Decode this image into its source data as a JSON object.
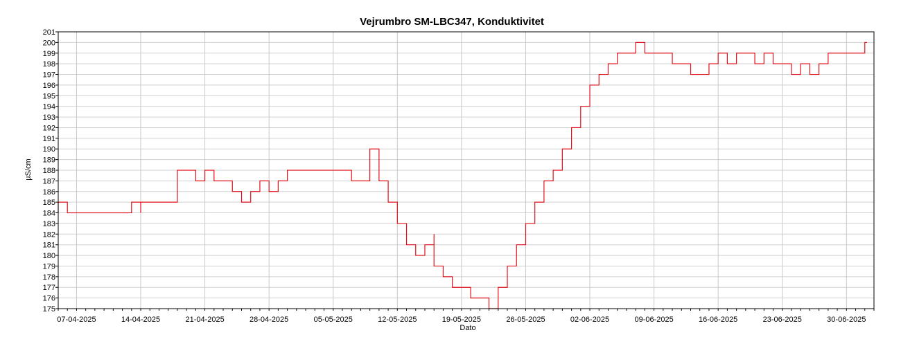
{
  "chart_data": {
    "type": "line",
    "title": "Vejrumbro SM-LBC347, Konduktivitet",
    "xlabel": "Dato",
    "ylabel": "µS/cm",
    "ylim": [
      175,
      201
    ],
    "xlim": [
      "2025-04-05",
      "2025-07-03"
    ],
    "yticks": [
      175,
      176,
      177,
      178,
      179,
      180,
      181,
      182,
      183,
      184,
      185,
      186,
      187,
      188,
      189,
      190,
      191,
      192,
      193,
      194,
      195,
      196,
      197,
      198,
      199,
      200,
      201
    ],
    "xticks": [
      {
        "date": "2025-04-07",
        "label": "07-04-2025"
      },
      {
        "date": "2025-04-14",
        "label": "14-04-2025"
      },
      {
        "date": "2025-04-21",
        "label": "21-04-2025"
      },
      {
        "date": "2025-04-28",
        "label": "28-04-2025"
      },
      {
        "date": "2025-05-05",
        "label": "05-05-2025"
      },
      {
        "date": "2025-05-12",
        "label": "12-05-2025"
      },
      {
        "date": "2025-05-19",
        "label": "19-05-2025"
      },
      {
        "date": "2025-05-26",
        "label": "26-05-2025"
      },
      {
        "date": "2025-06-02",
        "label": "02-06-2025"
      },
      {
        "date": "2025-06-09",
        "label": "09-06-2025"
      },
      {
        "date": "2025-06-16",
        "label": "16-06-2025"
      },
      {
        "date": "2025-06-23",
        "label": "23-06-2025"
      },
      {
        "date": "2025-06-30",
        "label": "30-06-2025"
      }
    ],
    "grid": true,
    "legend": "none",
    "series": [
      {
        "color": "#e0101a",
        "x": [
          "2025-04-05",
          "2025-04-05",
          "2025-04-06",
          "2025-04-07",
          "2025-04-10",
          "2025-04-12",
          "2025-04-13",
          "2025-04-13",
          "2025-04-14",
          "2025-04-14",
          "2025-04-15",
          "2025-04-17",
          "2025-04-18",
          "2025-04-19",
          "2025-04-20",
          "2025-04-21",
          "2025-04-22",
          "2025-04-23",
          "2025-04-24",
          "2025-04-25",
          "2025-04-26",
          "2025-04-27",
          "2025-04-28",
          "2025-04-29",
          "2025-04-30",
          "2025-05-01",
          "2025-05-02",
          "2025-05-03",
          "2025-05-04",
          "2025-05-05",
          "2025-05-06",
          "2025-05-07",
          "2025-05-08",
          "2025-05-09",
          "2025-05-10",
          "2025-05-11",
          "2025-05-12",
          "2025-05-13",
          "2025-05-14",
          "2025-05-15",
          "2025-05-16",
          "2025-05-16",
          "2025-05-17",
          "2025-05-18",
          "2025-05-19",
          "2025-05-20",
          "2025-05-21",
          "2025-05-22",
          "2025-05-23",
          "2025-05-24",
          "2025-05-25",
          "2025-05-26",
          "2025-05-27",
          "2025-05-28",
          "2025-05-29",
          "2025-05-30",
          "2025-05-31",
          "2025-06-01",
          "2025-06-02",
          "2025-06-03",
          "2025-06-04",
          "2025-06-05",
          "2025-06-06",
          "2025-06-07",
          "2025-06-08",
          "2025-06-09",
          "2025-06-10",
          "2025-06-11",
          "2025-06-12",
          "2025-06-13",
          "2025-06-14",
          "2025-06-15",
          "2025-06-16",
          "2025-06-17",
          "2025-06-18",
          "2025-06-19",
          "2025-06-20",
          "2025-06-21",
          "2025-06-22",
          "2025-06-23",
          "2025-06-24",
          "2025-06-25",
          "2025-06-26",
          "2025-06-27",
          "2025-06-28",
          "2025-06-29",
          "2025-06-30",
          "2025-07-01",
          "2025-07-02"
        ],
        "y": [
          184,
          185,
          184,
          184,
          184,
          184,
          184,
          185,
          184,
          185,
          185,
          185,
          188,
          188,
          187,
          188,
          187,
          187,
          186,
          185,
          186,
          187,
          186,
          187,
          188,
          188,
          188,
          188,
          188,
          188,
          188,
          187,
          187,
          190,
          187,
          185,
          183,
          181,
          180,
          181,
          182,
          179,
          178,
          177,
          177,
          176,
          176,
          175,
          177,
          179,
          181,
          183,
          185,
          187,
          188,
          190,
          192,
          194,
          196,
          197,
          198,
          199,
          199,
          200,
          199,
          199,
          199,
          198,
          198,
          197,
          197,
          198,
          199,
          198,
          199,
          199,
          198,
          199,
          198,
          198,
          197,
          198,
          197,
          198,
          199,
          199,
          199,
          199,
          200
        ]
      }
    ]
  }
}
